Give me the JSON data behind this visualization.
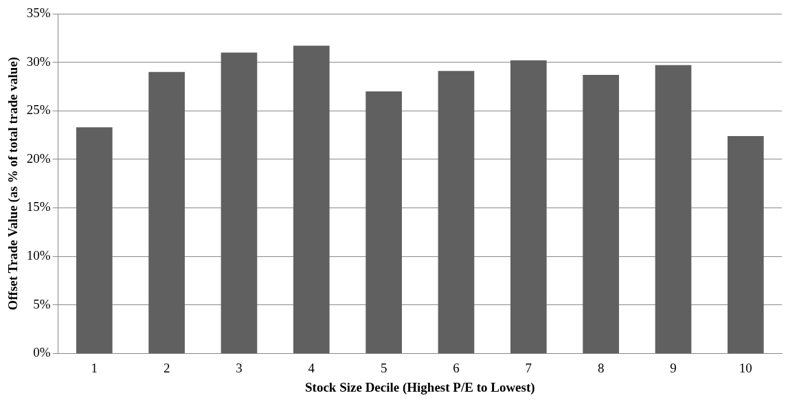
{
  "chart_data": {
    "type": "bar",
    "xlabel": "Stock Size Decile (Highest P/E to Lowest)",
    "ylabel": "Offset Trade Value (as % of total trade value)",
    "categories": [
      "1",
      "2",
      "3",
      "4",
      "5",
      "6",
      "7",
      "8",
      "9",
      "10"
    ],
    "values": [
      23.3,
      29.0,
      31.0,
      31.7,
      27.0,
      29.1,
      30.2,
      28.7,
      29.7,
      22.4
    ],
    "color": "#606060",
    "ylim": [
      0,
      35
    ],
    "yticks": [
      {
        "value": 0,
        "label": "0%"
      },
      {
        "value": 5,
        "label": "5%"
      },
      {
        "value": 10,
        "label": "10%"
      },
      {
        "value": 15,
        "label": "15%"
      },
      {
        "value": 20,
        "label": "20%"
      },
      {
        "value": 25,
        "label": "25%"
      },
      {
        "value": 30,
        "label": "30%"
      },
      {
        "value": 35,
        "label": "35%"
      }
    ],
    "grid": "y",
    "legend": false
  }
}
